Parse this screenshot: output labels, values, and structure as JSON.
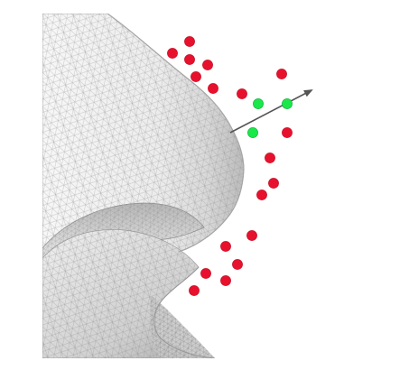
{
  "scene": {
    "background_color": "#ffffff",
    "mesh": {
      "fill_light": "#f6f6f6",
      "fill_mid": "#e3e3e3",
      "fill_dark": "#bdbdbd",
      "wire_color": "#8f8f8f"
    },
    "arrow": {
      "color": "#555555"
    },
    "points": {
      "red_color": "#e8112d",
      "green_color": "#19e84a"
    }
  }
}
